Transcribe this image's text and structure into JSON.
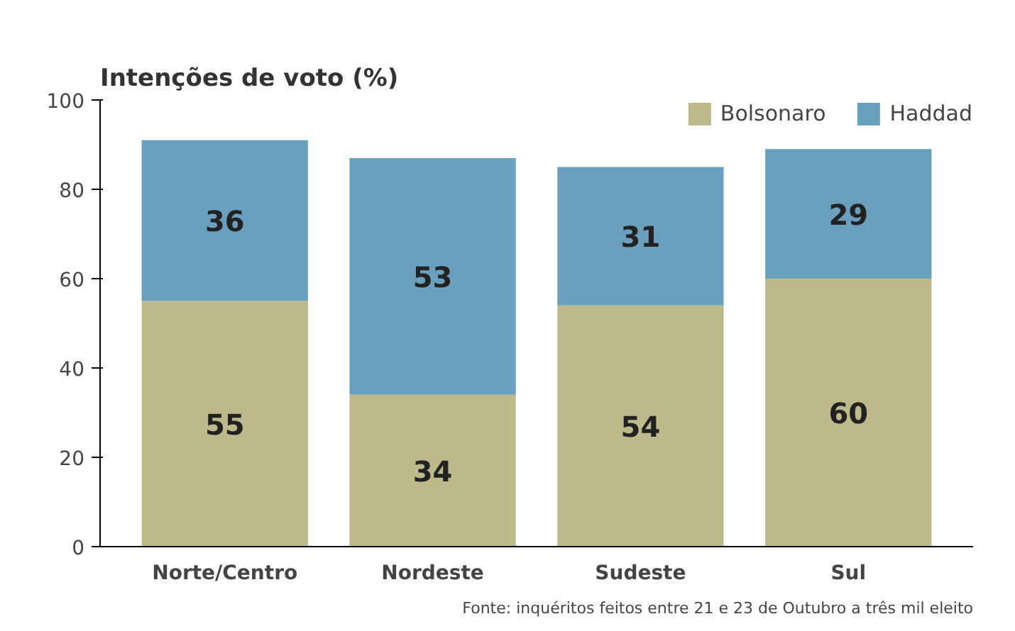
{
  "chart_data": {
    "type": "bar",
    "title": "Intenções de voto (%)",
    "categories": [
      "Norte/Centro",
      "Nordeste",
      "Sudeste",
      "Sul"
    ],
    "series": [
      {
        "name": "Bolsonaro",
        "color": "#bdb98a",
        "values": [
          55,
          34,
          54,
          60
        ]
      },
      {
        "name": "Haddad",
        "color": "#6aa0bd",
        "values": [
          36,
          53,
          31,
          29
        ]
      }
    ],
    "stacked": true,
    "data_labels": true,
    "ylim": [
      0,
      100
    ],
    "yticks": [
      0,
      20,
      40,
      60,
      80,
      100
    ],
    "grid": false,
    "legend": "top right",
    "annotations": [
      "Fonte: inquéritos feitos entre 21 e 23 de Outubro a três mil eleito"
    ]
  }
}
